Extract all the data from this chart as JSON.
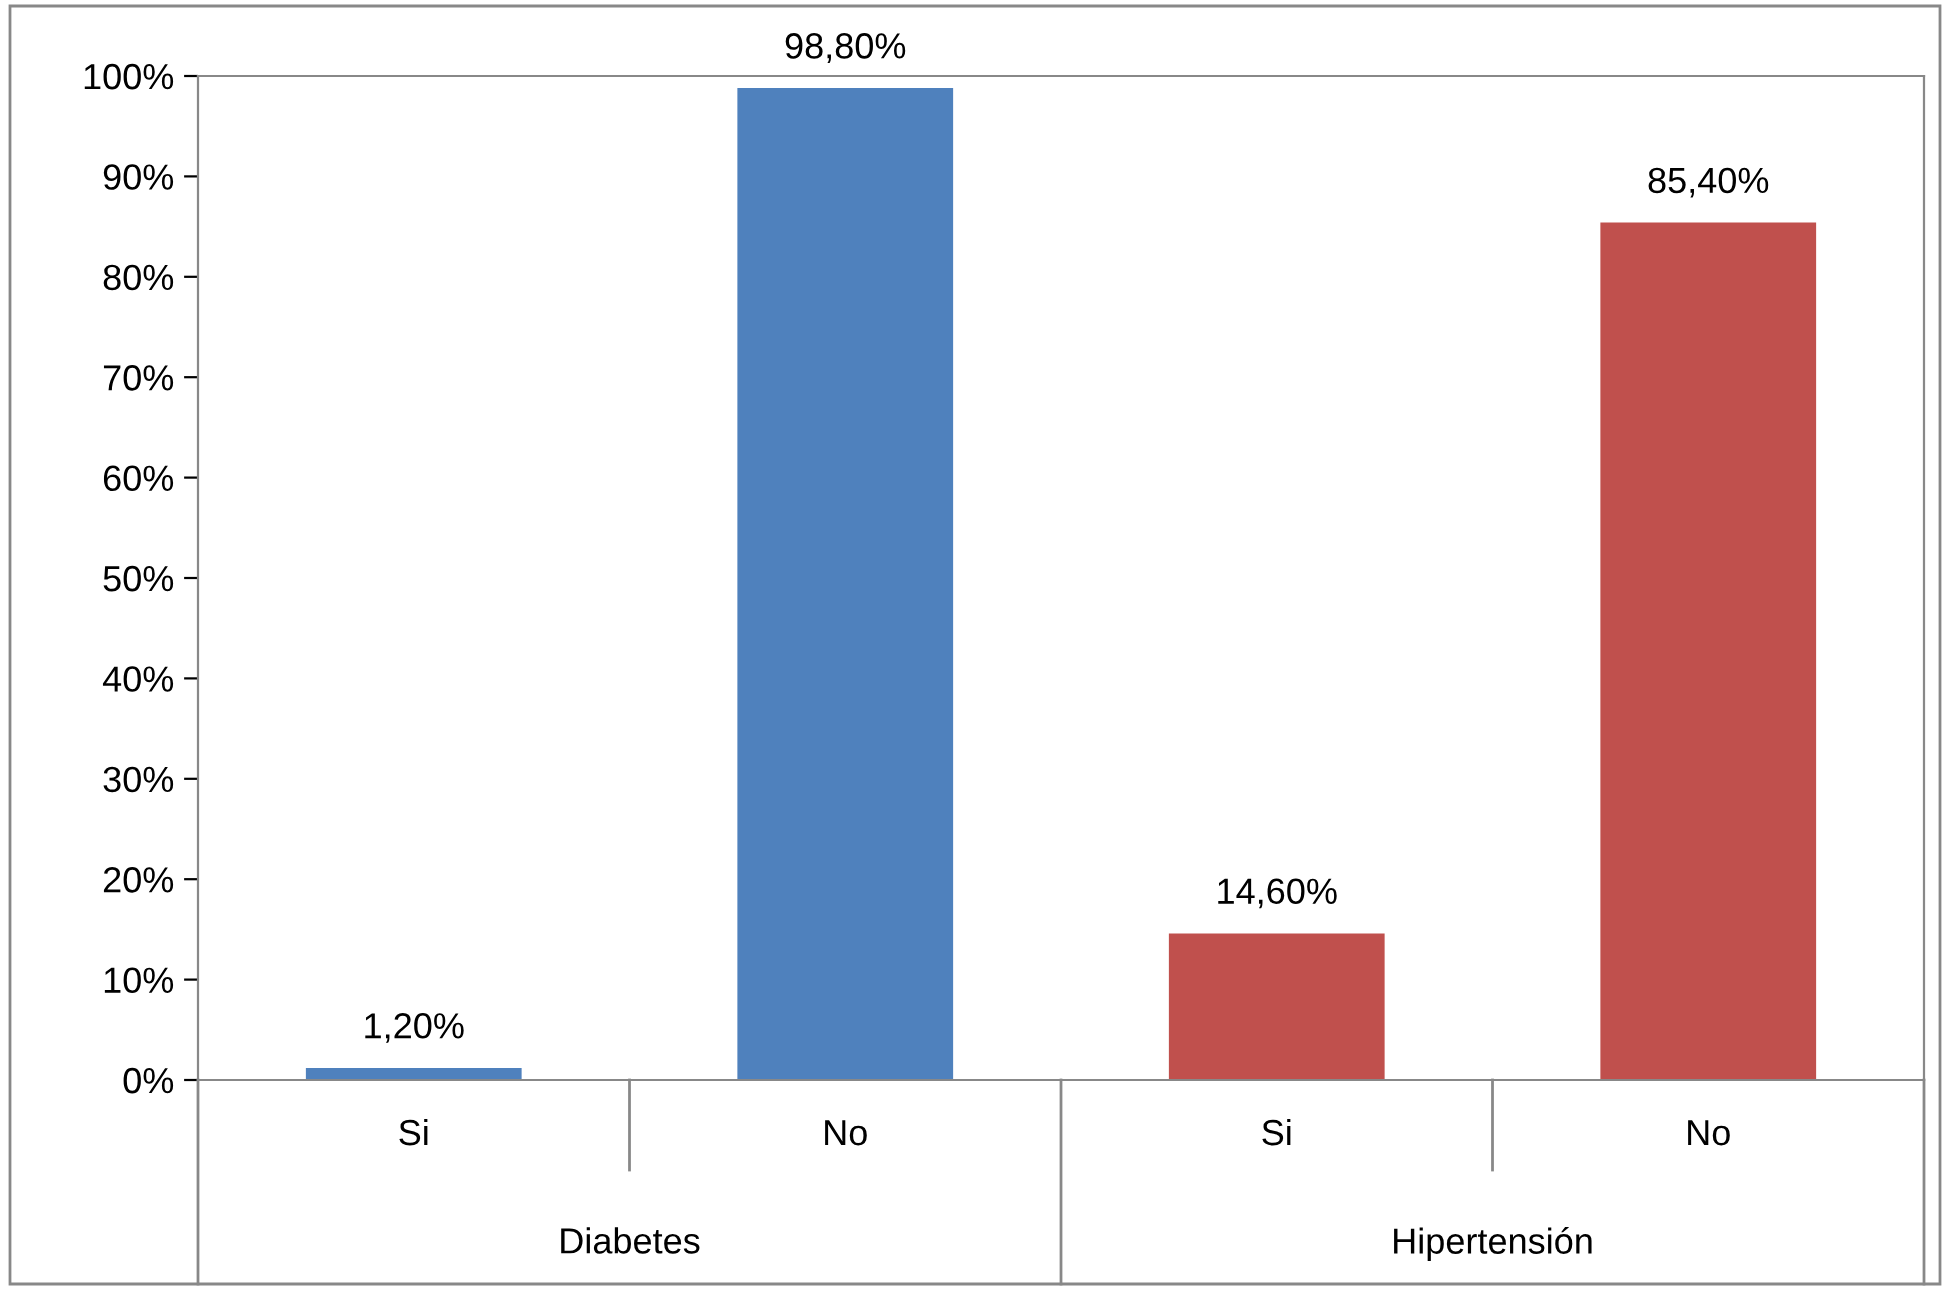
{
  "chart_data": {
    "type": "bar",
    "categories": [
      "Si",
      "No",
      "Si",
      "No"
    ],
    "values": [
      1.2,
      98.8,
      14.6,
      85.4
    ],
    "colors": [
      "#4f81bd",
      "#4f81bd",
      "#c0504d",
      "#c0504d"
    ],
    "value_labels": [
      "1,20%",
      "98,80%",
      "14,60%",
      "85,40%"
    ],
    "annotations": [
      "Diabetes",
      "Hipertensión"
    ],
    "ylim": [
      0,
      100
    ],
    "yticks": [
      {
        "value": 0,
        "label": "0%"
      },
      {
        "value": 10,
        "label": "10%"
      },
      {
        "value": 20,
        "label": "20%"
      },
      {
        "value": 30,
        "label": "30%"
      },
      {
        "value": 40,
        "label": "40%"
      },
      {
        "value": 50,
        "label": "50%"
      },
      {
        "value": 60,
        "label": "60%"
      },
      {
        "value": 70,
        "label": "70%"
      },
      {
        "value": 80,
        "label": "80%"
      },
      {
        "value": 90,
        "label": "90%"
      },
      {
        "value": 100,
        "label": "100%"
      }
    ],
    "grid": false,
    "legend": false
  }
}
